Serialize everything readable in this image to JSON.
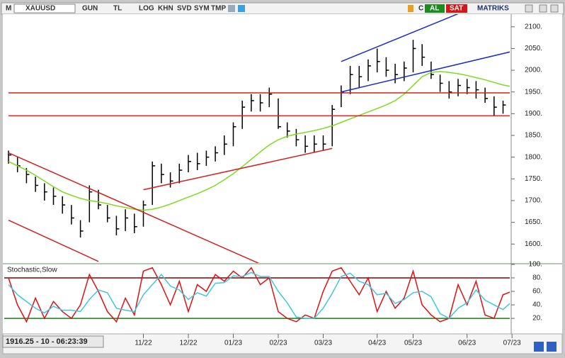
{
  "toolbar": {
    "items": [
      "M",
      "XAUUSD",
      "GUN",
      "TL",
      "LOG",
      "KHN",
      "SVD",
      "SYM",
      "TMP",
      "C",
      "AL",
      "SAT",
      "MATRIKS"
    ]
  },
  "chart_data": [
    {
      "type": "hlc",
      "cursor_readout": "1916.25 - 10 - 06:23:39",
      "categories": [
        null,
        null,
        null,
        null,
        null,
        null,
        null,
        null,
        null,
        null,
        null,
        null,
        null,
        null,
        null,
        "11/22",
        null,
        null,
        null,
        null,
        "12/22",
        null,
        null,
        null,
        null,
        "01/23",
        null,
        null,
        null,
        null,
        "02/23",
        null,
        null,
        null,
        null,
        "03/23",
        null,
        null,
        null,
        null,
        null,
        "04/23",
        null,
        null,
        null,
        "05/23",
        null,
        null,
        null,
        null,
        null,
        "06/23",
        null,
        null,
        null,
        null,
        "07/23"
      ],
      "high": [
        1815,
        1800,
        1775,
        1755,
        1740,
        1730,
        1710,
        1690,
        1655,
        1735,
        1725,
        1690,
        1665,
        1680,
        1670,
        1700,
        1790,
        1785,
        1765,
        1785,
        1805,
        1810,
        1815,
        1825,
        1850,
        1880,
        1930,
        1945,
        1945,
        1960,
        1935,
        1880,
        1865,
        1850,
        1850,
        1850,
        1920,
        1965,
        2010,
        2010,
        2025,
        2050,
        2030,
        2015,
        2020,
        2070,
        2060,
        2020,
        1990,
        1975,
        1980,
        1980,
        1975,
        1960,
        1940,
        1930,
        1925
      ],
      "low": [
        1785,
        1765,
        1740,
        1720,
        1700,
        1690,
        1670,
        1645,
        1615,
        1650,
        1680,
        1650,
        1620,
        1630,
        1625,
        1640,
        1690,
        1740,
        1730,
        1740,
        1765,
        1770,
        1780,
        1790,
        1805,
        1825,
        1865,
        1905,
        1905,
        1915,
        1865,
        1845,
        1825,
        1810,
        1810,
        1815,
        1825,
        1915,
        1945,
        1960,
        1975,
        1995,
        1985,
        1970,
        1975,
        1995,
        2010,
        1980,
        1950,
        1935,
        1940,
        1945,
        1935,
        1925,
        1895,
        1900,
        1905
      ],
      "close": [
        1805,
        1780,
        1760,
        1735,
        1720,
        1710,
        1690,
        1660,
        1630,
        1720,
        1690,
        1660,
        1635,
        1660,
        1640,
        1690,
        1780,
        1760,
        1745,
        1770,
        1790,
        1785,
        1800,
        1810,
        1830,
        1870,
        1915,
        1930,
        1925,
        1945,
        1870,
        1860,
        1840,
        1825,
        1830,
        1830,
        1910,
        1950,
        1990,
        1985,
        2010,
        2020,
        2000,
        1990,
        2005,
        2050,
        2030,
        1990,
        1970,
        1950,
        1965,
        1960,
        1955,
        1935,
        1915,
        1920,
        1915
      ],
      "color": "#000000",
      "moving_average": {
        "color": "#7ddc1f",
        "values": [
          1790,
          1780,
          1770,
          1758,
          1745,
          1732,
          1720,
          1712,
          1705,
          1700,
          1697,
          1693,
          1688,
          1684,
          1680,
          1678,
          1680,
          1685,
          1692,
          1700,
          1708,
          1716,
          1725,
          1735,
          1748,
          1762,
          1778,
          1795,
          1812,
          1828,
          1840,
          1848,
          1853,
          1857,
          1861,
          1866,
          1872,
          1880,
          1888,
          1896,
          1904,
          1912,
          1920,
          1930,
          1945,
          1965,
          1985,
          1995,
          1997,
          1995,
          1992,
          1988,
          1983,
          1978,
          1972,
          1966,
          1962
        ]
      },
      "lines": [
        {
          "color": "#d42020",
          "x": [
            0,
            29
          ],
          "y": [
            1810,
            1545
          ]
        },
        {
          "color": "#d42020",
          "x": [
            0,
            10
          ],
          "y": [
            1655,
            1560
          ]
        },
        {
          "color": "#d42020",
          "x": [
            15,
            36
          ],
          "y": [
            1725,
            1820
          ]
        },
        {
          "color": "#1c2fc4",
          "x": [
            37,
            50
          ],
          "y": [
            2020,
            2130
          ]
        },
        {
          "color": "#1c2fc4",
          "x": [
            37,
            59
          ],
          "y": [
            1950,
            2058
          ]
        },
        {
          "color": "#d42020",
          "x": [
            0,
            57
          ],
          "y": [
            1948,
            1948
          ]
        },
        {
          "color": "#d42020",
          "x": [
            0,
            57
          ],
          "y": [
            1895,
            1895
          ]
        }
      ],
      "ylim": [
        1558,
        2129
      ],
      "yticks": [
        {
          "value": 1600,
          "label": "1600."
        },
        {
          "value": 1650,
          "label": "1650."
        },
        {
          "value": 1700,
          "label": "1700."
        },
        {
          "value": 1750,
          "label": "1750."
        },
        {
          "value": 1800,
          "label": "1800."
        },
        {
          "value": 1850,
          "label": "1850."
        },
        {
          "value": 1900,
          "label": "1900."
        },
        {
          "value": 1950,
          "label": "1950."
        },
        {
          "value": 2000,
          "label": "2000."
        },
        {
          "value": 2050,
          "label": "2050."
        },
        {
          "value": 2100,
          "label": "2100."
        }
      ]
    },
    {
      "type": "line",
      "title": "Stochastic,Slow",
      "series": [
        {
          "color": "#e01010",
          "values": [
            80,
            40,
            15,
            50,
            20,
            45,
            30,
            20,
            40,
            85,
            60,
            30,
            15,
            50,
            25,
            90,
            95,
            70,
            40,
            75,
            30,
            70,
            60,
            85,
            75,
            90,
            80,
            95,
            70,
            80,
            30,
            20,
            15,
            25,
            20,
            60,
            90,
            95,
            75,
            55,
            80,
            30,
            60,
            35,
            50,
            90,
            40,
            25,
            15,
            20,
            70,
            40,
            75,
            25,
            20,
            55,
            60
          ]
        },
        {
          "color": "#3cc8e0",
          "values": [
            70,
            55,
            45,
            35,
            28,
            38,
            32,
            32,
            30,
            48,
            62,
            58,
            35,
            32,
            30,
            55,
            70,
            85,
            68,
            62,
            48,
            58,
            53,
            72,
            73,
            83,
            82,
            88,
            82,
            82,
            60,
            43,
            22,
            20,
            20,
            35,
            57,
            82,
            87,
            75,
            70,
            55,
            57,
            42,
            48,
            58,
            60,
            52,
            27,
            20,
            35,
            43,
            62,
            47,
            40,
            33,
            45
          ]
        }
      ],
      "hlines": [
        {
          "value": 80,
          "color": "#8b0000"
        },
        {
          "value": 20,
          "color": "#1a7a1a"
        }
      ],
      "ylim": [
        -2,
        101
      ],
      "yticks": [
        {
          "value": 20,
          "label": "20."
        },
        {
          "value": 40,
          "label": "40."
        },
        {
          "value": 60,
          "label": "60."
        },
        {
          "value": 80,
          "label": "80."
        },
        {
          "value": 100,
          "label": "100."
        }
      ]
    }
  ]
}
